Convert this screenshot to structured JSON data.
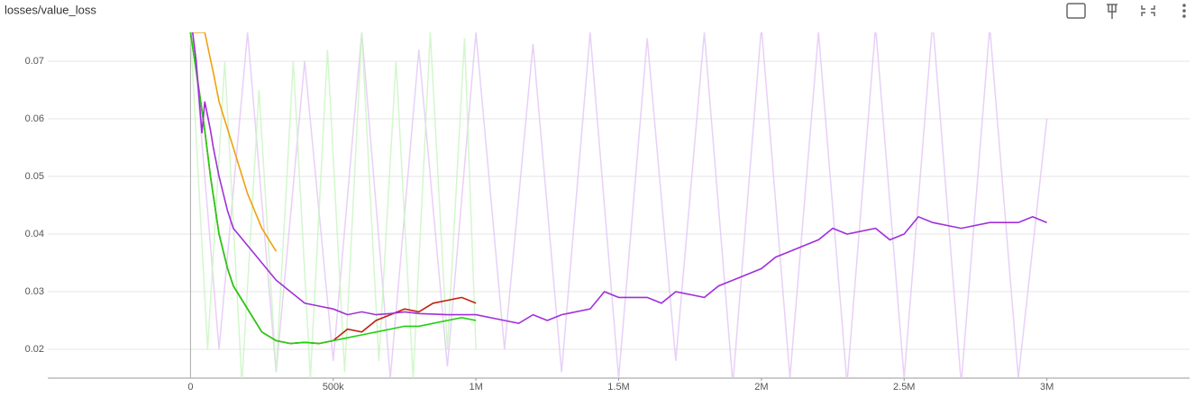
{
  "chart_data": {
    "type": "line",
    "title": "losses/value_loss",
    "xlim": [
      -500000,
      3500000
    ],
    "ylim": [
      0.015,
      0.075
    ],
    "xticks": [
      0,
      {
        "value": 500000,
        "label": "500k"
      },
      {
        "value": 1000000,
        "label": "1M"
      },
      {
        "value": 1500000,
        "label": "1.5M"
      },
      {
        "value": 2000000,
        "label": "2M"
      },
      {
        "value": 2500000,
        "label": "2.5M"
      },
      {
        "value": 3000000,
        "label": "3M"
      }
    ],
    "yticks": [
      0.02,
      0.03,
      0.04,
      0.05,
      0.06,
      0.07
    ],
    "grid": true,
    "raw_series": [
      {
        "color": "#e3c4f5",
        "x": [
          0,
          100000,
          200000,
          300000,
          400000,
          500000,
          600000,
          700000,
          800000,
          900000,
          1000000,
          1100000,
          1200000,
          1300000,
          1400000,
          1500000,
          1600000,
          1700000,
          1800000,
          1900000,
          2000000,
          2100000,
          2200000,
          2300000,
          2400000,
          2500000,
          2600000,
          2700000,
          2800000,
          2900000,
          3000000
        ],
        "values": [
          0.08,
          0.02,
          0.075,
          0.016,
          0.07,
          0.018,
          0.075,
          0.015,
          0.072,
          0.017,
          0.075,
          0.02,
          0.073,
          0.016,
          0.075,
          0.015,
          0.074,
          0.018,
          0.075,
          0.014,
          0.076,
          0.015,
          0.075,
          0.014,
          0.076,
          0.015,
          0.077,
          0.014,
          0.076,
          0.015,
          0.06
        ]
      },
      {
        "color": "#c8f5c0",
        "x": [
          0,
          60000,
          120000,
          180000,
          240000,
          300000,
          360000,
          420000,
          480000,
          540000,
          600000,
          660000,
          720000,
          780000,
          840000,
          900000,
          960000,
          1000000
        ],
        "values": [
          0.075,
          0.02,
          0.07,
          0.014,
          0.065,
          0.016,
          0.07,
          0.015,
          0.072,
          0.016,
          0.075,
          0.018,
          0.07,
          0.015,
          0.075,
          0.02,
          0.074,
          0.02
        ]
      }
    ],
    "series": [
      {
        "color": "#f0a010",
        "x": [
          0,
          50000,
          80000,
          100000,
          150000,
          200000,
          250000,
          300000
        ],
        "values": [
          0.075,
          0.075,
          0.068,
          0.063,
          0.055,
          0.047,
          0.041,
          0.037
        ]
      },
      {
        "color": "#c02010",
        "x": [
          0,
          30000,
          50000,
          70000,
          100000,
          130000,
          150000,
          200000,
          250000,
          300000,
          350000,
          400000,
          450000,
          500000,
          550000,
          600000,
          650000,
          700000,
          750000,
          800000,
          850000,
          900000,
          950000,
          1000000
        ],
        "values": [
          0.075,
          0.065,
          0.058,
          0.05,
          0.04,
          0.034,
          0.031,
          0.027,
          0.023,
          0.0215,
          0.021,
          0.0212,
          0.021,
          0.0215,
          0.0235,
          0.023,
          0.025,
          0.026,
          0.027,
          0.0265,
          0.028,
          0.0285,
          0.029,
          0.028
        ]
      },
      {
        "color": "#20d010",
        "x": [
          0,
          30000,
          50000,
          70000,
          100000,
          130000,
          150000,
          200000,
          250000,
          300000,
          350000,
          400000,
          450000,
          500000,
          550000,
          600000,
          650000,
          700000,
          750000,
          800000,
          850000,
          900000,
          950000,
          1000000
        ],
        "values": [
          0.075,
          0.065,
          0.058,
          0.05,
          0.04,
          0.034,
          0.031,
          0.027,
          0.023,
          0.0215,
          0.021,
          0.0212,
          0.021,
          0.0215,
          0.022,
          0.0225,
          0.023,
          0.0235,
          0.024,
          0.024,
          0.0245,
          0.025,
          0.0255,
          0.025
        ]
      },
      {
        "color": "#a030d8",
        "x": [
          0,
          20000,
          40000,
          50000,
          70000,
          80000,
          100000,
          130000,
          150000,
          200000,
          250000,
          300000,
          350000,
          400000,
          450000,
          500000,
          550000,
          600000,
          650000,
          700000,
          750000,
          800000,
          900000,
          1000000,
          1100000,
          1150000,
          1200000,
          1250000,
          1300000,
          1400000,
          1450000,
          1500000,
          1600000,
          1650000,
          1700000,
          1800000,
          1850000,
          1900000,
          2000000,
          2050000,
          2100000,
          2150000,
          2200000,
          2250000,
          2300000,
          2400000,
          2450000,
          2500000,
          2550000,
          2600000,
          2700000,
          2800000,
          2900000,
          2950000,
          3000000
        ],
        "values": [
          0.078,
          0.07,
          0.0575,
          0.063,
          0.058,
          0.055,
          0.05,
          0.044,
          0.041,
          0.038,
          0.035,
          0.032,
          0.03,
          0.028,
          0.0275,
          0.027,
          0.026,
          0.0265,
          0.026,
          0.0262,
          0.0265,
          0.0262,
          0.026,
          0.026,
          0.025,
          0.0245,
          0.026,
          0.025,
          0.026,
          0.027,
          0.03,
          0.029,
          0.029,
          0.028,
          0.03,
          0.029,
          0.031,
          0.032,
          0.034,
          0.036,
          0.037,
          0.038,
          0.039,
          0.041,
          0.04,
          0.041,
          0.039,
          0.04,
          0.043,
          0.042,
          0.041,
          0.042,
          0.042,
          0.043,
          0.042
        ]
      }
    ]
  }
}
